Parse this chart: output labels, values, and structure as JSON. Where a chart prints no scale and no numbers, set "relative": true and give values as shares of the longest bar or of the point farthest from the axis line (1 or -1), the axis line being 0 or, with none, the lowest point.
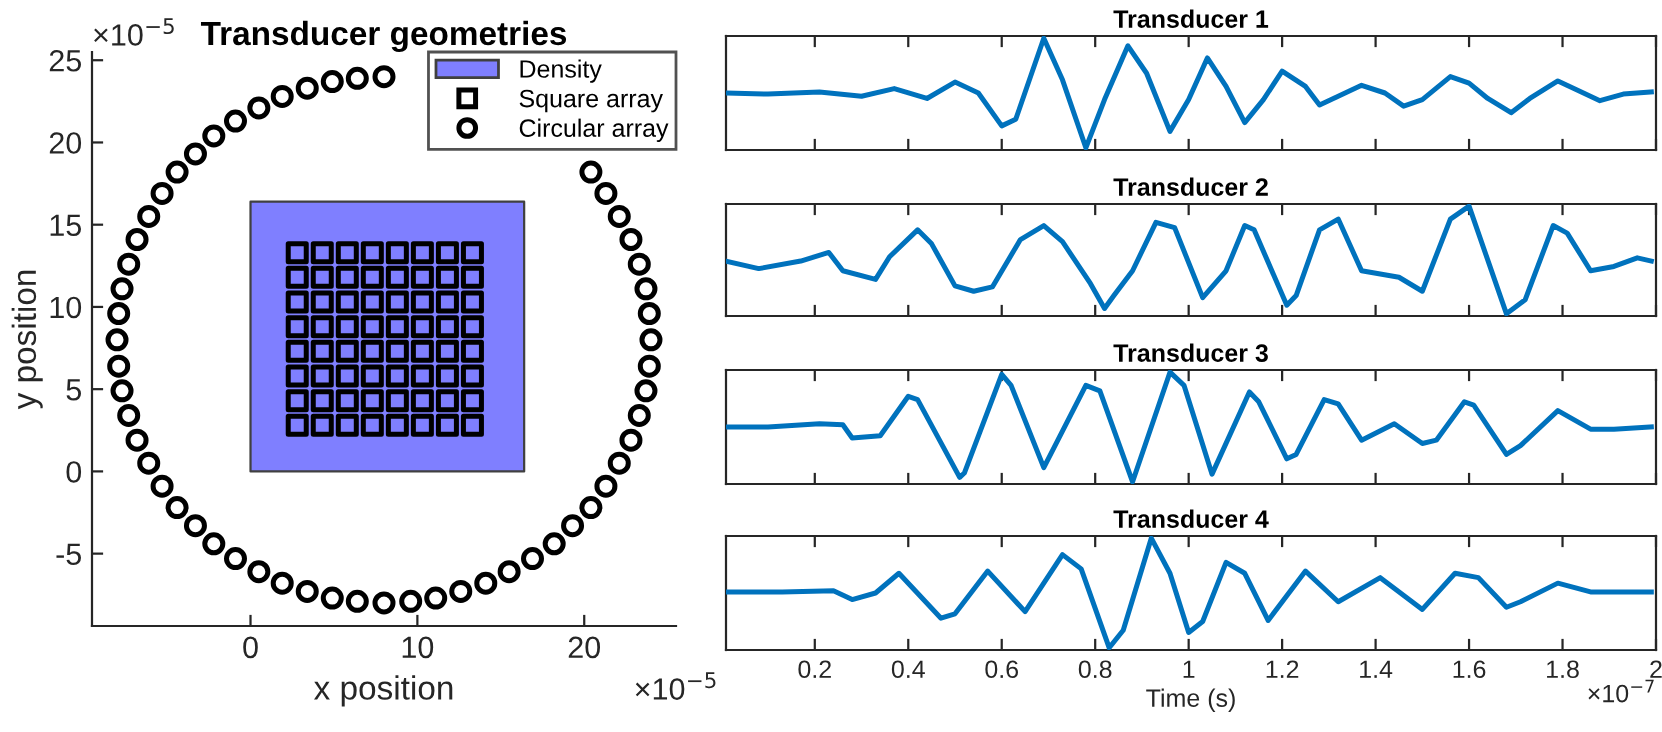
{
  "chart_data": [
    {
      "type": "scatter",
      "title": "Transducer geometries",
      "xlabel": "x position",
      "ylabel": "y position",
      "annotations": [
        "×10$^{−5}$",
        "×10$^{−5}$"
      ],
      "xlim": [
        -9.5,
        25.5
      ],
      "ylim": [
        -9.4,
        25.5
      ],
      "xticks": [
        0,
        10,
        20
      ],
      "yticks": [
        -5,
        0,
        5,
        10,
        15,
        20,
        25
      ],
      "legend": "top right",
      "series": [
        {
          "name": "Density",
          "type": "area",
          "color": "#7f7fff",
          "x": [
            0,
            16.4
          ],
          "values": [
            16.4,
            16.4
          ]
        },
        {
          "name": "Square array",
          "type": "scatter",
          "marker": "square",
          "color": "#000000",
          "x": [
            2.8,
            4.3,
            5.8,
            7.3,
            8.8,
            10.3,
            11.8,
            13.3,
            2.8,
            4.3,
            5.8,
            7.3,
            8.8,
            10.3,
            11.8,
            13.3,
            2.8,
            4.3,
            5.8,
            7.3,
            8.8,
            10.3,
            11.8,
            13.3,
            2.8,
            4.3,
            5.8,
            7.3,
            8.8,
            10.3,
            11.8,
            13.3,
            2.8,
            4.3,
            5.8,
            7.3,
            8.8,
            10.3,
            11.8,
            13.3,
            2.8,
            4.3,
            5.8,
            7.3,
            8.8,
            10.3,
            11.8,
            13.3,
            2.8,
            4.3,
            5.8,
            7.3,
            8.8,
            10.3,
            11.8,
            13.3,
            2.8,
            4.3,
            5.8,
            7.3,
            8.8,
            10.3,
            11.8,
            13.3
          ],
          "values": [
            2.8,
            2.8,
            2.8,
            2.8,
            2.8,
            2.8,
            2.8,
            2.8,
            4.3,
            4.3,
            4.3,
            4.3,
            4.3,
            4.3,
            4.3,
            4.3,
            5.8,
            5.8,
            5.8,
            5.8,
            5.8,
            5.8,
            5.8,
            5.8,
            7.3,
            7.3,
            7.3,
            7.3,
            7.3,
            7.3,
            7.3,
            7.3,
            8.8,
            8.8,
            8.8,
            8.8,
            8.8,
            8.8,
            8.8,
            8.8,
            10.3,
            10.3,
            10.3,
            10.3,
            10.3,
            10.3,
            10.3,
            10.3,
            11.8,
            11.8,
            11.8,
            11.8,
            11.8,
            11.8,
            11.8,
            11.8,
            13.3,
            13.3,
            13.3,
            13.3,
            13.3,
            13.3,
            13.3,
            13.3
          ]
        },
        {
          "name": "Circular array",
          "type": "scatter",
          "marker": "circle",
          "color": "#000000",
          "x": [
            24,
            23.9,
            23.7,
            23.3,
            22.8,
            22.1,
            21.3,
            20.4,
            null,
            null,
            null,
            null,
            null,
            null,
            null,
            null,
            8,
            6.4,
            4.9,
            3.4,
            1.9,
            0.5,
            -0.9,
            -2.2,
            -3.3,
            -4.4,
            -5.3,
            -6.1,
            -6.8,
            -7.3,
            -7.7,
            -7.9,
            -8,
            -7.9,
            -7.7,
            -7.3,
            -6.8,
            -6.1,
            -5.3,
            -4.4,
            -3.3,
            -2.2,
            -0.9,
            0.5,
            1.9,
            3.4,
            4.9,
            6.4,
            8,
            9.6,
            11.1,
            12.6,
            14.1,
            15.5,
            16.9,
            18.2,
            19.3,
            20.4,
            21.3,
            22.1,
            22.8,
            23.3,
            23.7,
            23.9
          ],
          "values": [
            8,
            9.6,
            11.1,
            12.6,
            14.1,
            15.5,
            16.9,
            18.2,
            null,
            null,
            null,
            null,
            null,
            null,
            null,
            null,
            24,
            23.9,
            23.7,
            23.3,
            22.8,
            22.1,
            21.3,
            20.4,
            19.3,
            18.2,
            16.9,
            15.5,
            14.1,
            12.6,
            11.1,
            9.6,
            8,
            6.4,
            4.9,
            3.4,
            1.9,
            0.5,
            -0.9,
            -2.2,
            -3.3,
            -4.4,
            -5.3,
            -6.1,
            -6.8,
            -7.3,
            -7.7,
            -7.9,
            -8,
            -7.9,
            -7.7,
            -7.3,
            -6.8,
            -6.1,
            -5.3,
            -4.4,
            -3.3,
            -2.2,
            -0.9,
            0.5,
            1.9,
            3.4,
            4.9,
            6.4
          ]
        }
      ]
    },
    {
      "type": "line",
      "title": "Transducer 1",
      "relative": true,
      "xlim": [
        0.01,
        2
      ],
      "xticks": [
        0.2,
        0.4,
        0.6,
        0.8,
        1,
        1.2,
        1.4,
        1.6,
        1.8,
        2
      ],
      "tick_labels": false,
      "series": [
        {
          "color": "#0072bd",
          "x": [
            0.01,
            0.1,
            0.21,
            0.3,
            0.37,
            0.44,
            0.5,
            0.55,
            0.6,
            0.63,
            0.69,
            0.73,
            0.78,
            0.82,
            0.87,
            0.91,
            0.96,
            1.0,
            1.04,
            1.08,
            1.12,
            1.16,
            1.2,
            1.25,
            1.28,
            1.32,
            1.37,
            1.42,
            1.46,
            1.5,
            1.56,
            1.6,
            1.64,
            1.69,
            1.73,
            1.79,
            1.83,
            1.88,
            1.93,
            1.99
          ],
          "values": [
            0.5,
            0.49,
            0.51,
            0.47,
            0.54,
            0.45,
            0.6,
            0.5,
            0.2,
            0.26,
            1,
            0.62,
            0,
            0.44,
            0.93,
            0.68,
            0.15,
            0.44,
            0.82,
            0.56,
            0.23,
            0.44,
            0.7,
            0.56,
            0.39,
            0.47,
            0.57,
            0.5,
            0.38,
            0.44,
            0.65,
            0.59,
            0.45,
            0.32,
            0.45,
            0.61,
            0.53,
            0.43,
            0.49,
            0.51
          ]
        }
      ]
    },
    {
      "type": "line",
      "title": "Transducer 2",
      "relative": true,
      "xlim": [
        0.01,
        2
      ],
      "xticks": [
        0.2,
        0.4,
        0.6,
        0.8,
        1,
        1.2,
        1.4,
        1.6,
        1.8,
        2
      ],
      "tick_labels": false,
      "series": [
        {
          "color": "#0072bd",
          "x": [
            0.01,
            0.08,
            0.17,
            0.23,
            0.26,
            0.33,
            0.36,
            0.42,
            0.45,
            0.5,
            0.54,
            0.58,
            0.64,
            0.69,
            0.73,
            0.79,
            0.82,
            0.84,
            0.88,
            0.93,
            0.97,
            1.03,
            1.08,
            1.12,
            1.14,
            1.21,
            1.23,
            1.28,
            1.32,
            1.37,
            1.45,
            1.5,
            1.56,
            1.6,
            1.68,
            1.72,
            1.78,
            1.81,
            1.86,
            1.91,
            1.96,
            1.99
          ],
          "values": [
            0.49,
            0.42,
            0.49,
            0.57,
            0.4,
            0.32,
            0.53,
            0.78,
            0.65,
            0.26,
            0.21,
            0.25,
            0.69,
            0.82,
            0.67,
            0.28,
            0.05,
            0.17,
            0.4,
            0.85,
            0.8,
            0.15,
            0.4,
            0.82,
            0.78,
            0.08,
            0.17,
            0.78,
            0.88,
            0.4,
            0.34,
            0.21,
            0.88,
            1,
            0,
            0.13,
            0.82,
            0.75,
            0.4,
            0.44,
            0.52,
            0.49
          ]
        }
      ]
    },
    {
      "type": "line",
      "title": "Transducer 3",
      "relative": true,
      "xlim": [
        0.01,
        2
      ],
      "xticks": [
        0.2,
        0.4,
        0.6,
        0.8,
        1,
        1.2,
        1.4,
        1.6,
        1.8,
        2
      ],
      "tick_labels": false,
      "series": [
        {
          "color": "#0072bd",
          "x": [
            0.01,
            0.1,
            0.21,
            0.26,
            0.28,
            0.34,
            0.4,
            0.42,
            0.51,
            0.52,
            0.6,
            0.62,
            0.69,
            0.78,
            0.81,
            0.88,
            0.96,
            0.99,
            1.05,
            1.13,
            1.15,
            1.21,
            1.23,
            1.29,
            1.32,
            1.37,
            1.44,
            1.5,
            1.53,
            1.59,
            1.61,
            1.68,
            1.71,
            1.79,
            1.86,
            1.91,
            1.99
          ],
          "values": [
            0.5,
            0.5,
            0.53,
            0.52,
            0.4,
            0.42,
            0.78,
            0.75,
            0.04,
            0.08,
            0.98,
            0.88,
            0.13,
            0.88,
            0.83,
            0,
            1,
            0.88,
            0.07,
            0.82,
            0.73,
            0.21,
            0.25,
            0.75,
            0.71,
            0.38,
            0.53,
            0.35,
            0.38,
            0.73,
            0.7,
            0.25,
            0.33,
            0.65,
            0.48,
            0.48,
            0.5
          ]
        }
      ]
    },
    {
      "type": "line",
      "title": "Transducer 4",
      "xlabel": "Time (s)",
      "annotations": [
        "×10$^{−7}$"
      ],
      "relative": true,
      "xlim": [
        0.01,
        2
      ],
      "xticks": [
        0.2,
        0.4,
        0.6,
        0.8,
        1,
        1.2,
        1.4,
        1.6,
        1.8,
        2
      ],
      "tick_labels": "x",
      "series": [
        {
          "color": "#0072bd",
          "x": [
            0.01,
            0.13,
            0.24,
            0.28,
            0.33,
            0.38,
            0.47,
            0.5,
            0.57,
            0.65,
            0.73,
            0.77,
            0.83,
            0.86,
            0.92,
            0.96,
            1.0,
            1.03,
            1.08,
            1.12,
            1.17,
            1.25,
            1.32,
            1.41,
            1.5,
            1.57,
            1.62,
            1.68,
            1.71,
            1.79,
            1.86,
            1.99
          ],
          "values": [
            0.51,
            0.51,
            0.52,
            0.44,
            0.5,
            0.68,
            0.27,
            0.31,
            0.7,
            0.33,
            0.85,
            0.72,
            0,
            0.16,
            1,
            0.68,
            0.14,
            0.24,
            0.78,
            0.68,
            0.25,
            0.7,
            0.42,
            0.64,
            0.35,
            0.68,
            0.64,
            0.37,
            0.42,
            0.59,
            0.51,
            0.51
          ]
        }
      ]
    }
  ]
}
